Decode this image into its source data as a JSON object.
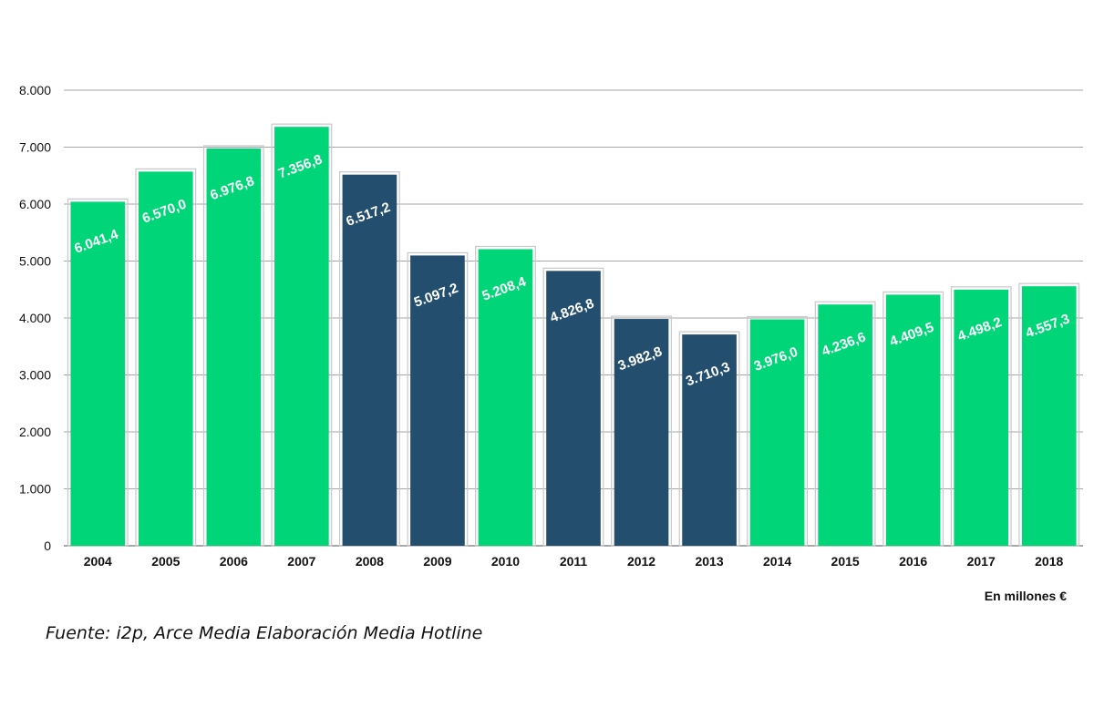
{
  "chart_data": {
    "type": "bar",
    "title": "",
    "xlabel": "",
    "ylabel": "",
    "categories": [
      "2004",
      "2005",
      "2006",
      "2007",
      "2008",
      "2009",
      "2010",
      "2011",
      "2012",
      "2013",
      "2014",
      "2015",
      "2016",
      "2017",
      "2018"
    ],
    "values": [
      6041.4,
      6570.0,
      6976.8,
      7356.8,
      6517.2,
      5097.2,
      5208.4,
      4826.8,
      3982.8,
      3710.3,
      3976.0,
      4236.6,
      4409.5,
      4498.2,
      4557.3
    ],
    "value_labels": [
      "6.041,4",
      "6.570,0",
      "6.976,8",
      "7.356,8",
      "6.517,2",
      "5.097,2",
      "5.208,4",
      "4.826,8",
      "3.982,8",
      "3.710,3",
      "3.976,0",
      "4.236,6",
      "4.409,5",
      "4.498,2",
      "4.557,3"
    ],
    "bar_colors": [
      "#00d678",
      "#00d678",
      "#00d678",
      "#00d678",
      "#234e6e",
      "#234e6e",
      "#00d678",
      "#234e6e",
      "#234e6e",
      "#234e6e",
      "#00d678",
      "#00d678",
      "#00d678",
      "#00d678",
      "#00d678"
    ],
    "ylim": [
      0,
      8000
    ],
    "yticks": [
      0,
      1000,
      2000,
      3000,
      4000,
      5000,
      6000,
      7000,
      8000
    ],
    "ytick_labels": [
      "0",
      "1.000",
      "2.000",
      "3.000",
      "4.000",
      "5.000",
      "6.000",
      "7.000",
      "8.000"
    ],
    "grid": true,
    "legend": "none"
  },
  "notes": {
    "unit": "En millones €",
    "source": "Fuente: i2p, Arce Media Elaboración Media Hotline"
  },
  "colors": {
    "growth_bar": "#00d678",
    "decline_bar": "#234e6e",
    "gridline": "#a6a6a6",
    "value_label": "#ffffff"
  }
}
